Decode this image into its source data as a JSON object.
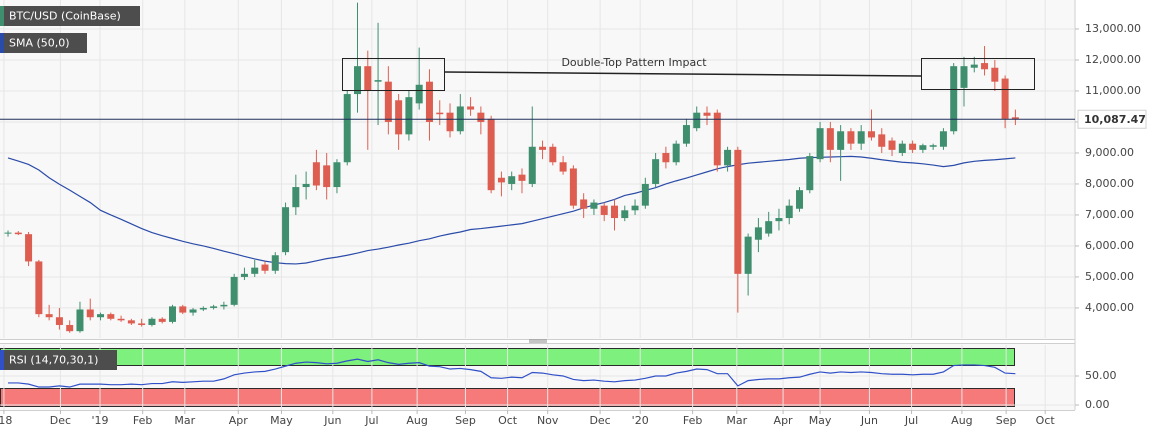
{
  "chart_data": [
    {
      "type": "candlestick",
      "title": "BTC/USD (CoinBase)",
      "up_color": "#3f8f6f",
      "down_color": "#dd5e50",
      "open": [
        6400,
        6430,
        6380,
        5500,
        3800,
        3700,
        3450,
        3250,
        3950,
        3700,
        3800,
        3650,
        3600,
        3500,
        3450,
        3650,
        3550,
        4050,
        3850,
        3950,
        4000,
        4050,
        4100,
        5000,
        5100,
        5400,
        5200,
        5800,
        7250,
        7900,
        8700,
        8600,
        7900,
        8700,
        10900,
        11800,
        11300,
        11300,
        10700,
        9600,
        10600,
        11300,
        10300,
        10300,
        9700,
        10500,
        10300,
        10100,
        8200,
        8000,
        8300,
        8000,
        9200,
        9200,
        8700,
        8500,
        7500,
        7200,
        7300,
        7300,
        6900,
        7150,
        7300,
        8000,
        9000,
        8700,
        9300,
        9800,
        10300,
        10300,
        8600,
        9100,
        5100,
        6200,
        6400,
        6800,
        6900,
        7200,
        7800,
        8800,
        9800,
        9100,
        9700,
        9300,
        9700,
        9600,
        9400,
        9000,
        9300,
        9100,
        9200,
        9200,
        9700,
        11100,
        11750,
        11900,
        11750,
        11400,
        10150
      ],
      "high": [
        6500,
        6480,
        6450,
        5550,
        4100,
        4000,
        3600,
        4200,
        4300,
        3850,
        3850,
        3750,
        3650,
        3650,
        3700,
        3700,
        4100,
        4100,
        4000,
        4050,
        4100,
        4200,
        5100,
        5300,
        5550,
        5500,
        5800,
        7400,
        8300,
        8400,
        9100,
        9000,
        8800,
        11000,
        13850,
        12300,
        13200,
        11800,
        10900,
        11000,
        12400,
        11700,
        10700,
        10600,
        10900,
        10800,
        10500,
        10200,
        8400,
        8400,
        8500,
        10500,
        9400,
        9300,
        8900,
        8600,
        7700,
        7500,
        7400,
        7500,
        7300,
        7500,
        8200,
        9000,
        9200,
        9400,
        10100,
        10500,
        10500,
        10400,
        9200,
        9200,
        6400,
        6900,
        7100,
        7200,
        7500,
        7900,
        9000,
        10000,
        10000,
        9900,
        9800,
        9900,
        10400,
        9800,
        9500,
        9400,
        9400,
        9300,
        9300,
        9800,
        11900,
        12100,
        12100,
        12450,
        12000,
        11500,
        10400
      ],
      "low": [
        6300,
        6350,
        5350,
        3700,
        3600,
        3300,
        3200,
        3200,
        3600,
        3600,
        3600,
        3550,
        3450,
        3400,
        3400,
        3500,
        3500,
        3800,
        3750,
        3900,
        3950,
        3950,
        4050,
        4900,
        5000,
        5100,
        5100,
        5700,
        7000,
        7500,
        7800,
        7500,
        7700,
        8600,
        10300,
        9100,
        9900,
        9600,
        9100,
        9400,
        10400,
        9400,
        9900,
        9500,
        9600,
        10200,
        9600,
        7700,
        7600,
        7800,
        7700,
        7900,
        8800,
        8600,
        8300,
        7200,
        6900,
        7000,
        6800,
        6500,
        6800,
        7000,
        7200,
        7900,
        8500,
        8600,
        9200,
        9700,
        9900,
        8400,
        8400,
        3850,
        4400,
        5800,
        6300,
        6500,
        6700,
        7100,
        7700,
        8700,
        8700,
        8100,
        9100,
        9100,
        9400,
        9000,
        8900,
        8900,
        9000,
        9000,
        9100,
        9100,
        9600,
        10500,
        11600,
        11500,
        11000,
        9800,
        9900
      ],
      "close": [
        6430,
        6380,
        5500,
        3800,
        3700,
        3450,
        3250,
        3950,
        3700,
        3800,
        3650,
        3600,
        3500,
        3450,
        3650,
        3550,
        4050,
        3850,
        3950,
        4000,
        4050,
        4100,
        5000,
        5100,
        5300,
        5200,
        5700,
        7250,
        7900,
        8000,
        7950,
        7900,
        8700,
        10900,
        11800,
        11000,
        11350,
        10000,
        9600,
        10800,
        11200,
        10000,
        10250,
        9700,
        10500,
        10400,
        10000,
        7800,
        8050,
        8250,
        8100,
        9200,
        9100,
        8700,
        8400,
        7300,
        7200,
        7400,
        7000,
        6900,
        7150,
        7300,
        8000,
        8800,
        8700,
        9300,
        9900,
        10300,
        10200,
        8600,
        9100,
        5100,
        6300,
        6600,
        6800,
        6900,
        7300,
        7800,
        8900,
        9800,
        9100,
        9700,
        9300,
        9700,
        9500,
        9200,
        9100,
        9300,
        9100,
        9250,
        9250,
        9700,
        11800,
        11800,
        11850,
        11700,
        11300,
        10100,
        10087.47
      ],
      "sma": {
        "name": "SMA (50,0)",
        "color": "#2a4ba8",
        "values": [
          8840,
          8740,
          8630,
          8450,
          8200,
          7990,
          7800,
          7600,
          7400,
          7150,
          7000,
          6860,
          6710,
          6560,
          6430,
          6330,
          6240,
          6150,
          6070,
          6000,
          5920,
          5830,
          5750,
          5660,
          5580,
          5510,
          5460,
          5430,
          5420,
          5450,
          5520,
          5590,
          5640,
          5700,
          5770,
          5850,
          5900,
          5960,
          6030,
          6090,
          6170,
          6230,
          6320,
          6390,
          6450,
          6530,
          6560,
          6600,
          6640,
          6680,
          6720,
          6800,
          6880,
          6960,
          7040,
          7120,
          7230,
          7320,
          7400,
          7500,
          7630,
          7700,
          7790,
          7880,
          8000,
          8100,
          8190,
          8290,
          8390,
          8490,
          8560,
          8620,
          8670,
          8700,
          8730,
          8760,
          8790,
          8830,
          8850,
          8860,
          8870,
          8880,
          8890,
          8870,
          8830,
          8780,
          8740,
          8700,
          8680,
          8650,
          8610,
          8560,
          8600,
          8680,
          8730,
          8760,
          8780,
          8810,
          8840
        ]
      },
      "last_price": {
        "value": 10087.47,
        "label": "10,087.47"
      },
      "annotation": "Double-Top Pattern Impact",
      "ylim": [
        3030,
        13935
      ],
      "yticks": [
        {
          "value": 4000,
          "label": "4,000.00"
        },
        {
          "value": 5000,
          "label": "5,000.00"
        },
        {
          "value": 6000,
          "label": "6,000.00"
        },
        {
          "value": 7000,
          "label": "7,000.00"
        },
        {
          "value": 8000,
          "label": "8,000.00"
        },
        {
          "value": 9000,
          "label": "9,000.00"
        },
        {
          "value": 10000,
          "label": "10,000.00"
        },
        {
          "value": 11000,
          "label": "11,000.00"
        },
        {
          "value": 12000,
          "label": "12,000.00"
        },
        {
          "value": 13000,
          "label": "13,000.00"
        }
      ],
      "xlim": [
        -0.78,
        103.8
      ],
      "xticks": [
        {
          "value": -0.4,
          "label": "'18"
        },
        {
          "value": 5.1,
          "label": "Dec"
        },
        {
          "value": 8.95,
          "label": "'19"
        },
        {
          "value": 13.1,
          "label": "Feb"
        },
        {
          "value": 17.2,
          "label": "Mar"
        },
        {
          "value": 22.4,
          "label": "Apr"
        },
        {
          "value": 26.6,
          "label": "May"
        },
        {
          "value": 31.6,
          "label": "Jun"
        },
        {
          "value": 35.4,
          "label": "Jul"
        },
        {
          "value": 39.8,
          "label": "Aug"
        },
        {
          "value": 44.5,
          "label": "Sep"
        },
        {
          "value": 48.6,
          "label": "Oct"
        },
        {
          "value": 52.5,
          "label": "Nov"
        },
        {
          "value": 57.6,
          "label": "Dec"
        },
        {
          "value": 61.5,
          "label": "'20"
        },
        {
          "value": 66.6,
          "label": "Feb"
        },
        {
          "value": 70.9,
          "label": "Mar"
        },
        {
          "value": 75.4,
          "label": "Apr"
        },
        {
          "value": 79,
          "label": "May"
        },
        {
          "value": 83.8,
          "label": "Jun"
        },
        {
          "value": 87.9,
          "label": "Jul"
        },
        {
          "value": 92.8,
          "label": "Aug"
        },
        {
          "value": 97.1,
          "label": "Sep"
        },
        {
          "value": 100.9,
          "label": "Oct"
        }
      ],
      "grid": true
    },
    {
      "type": "line",
      "series": [
        {
          "name": "RSI (14,70,30,1)",
          "color": "#3050c8",
          "values": [
            38,
            38,
            36,
            31,
            31,
            33,
            31,
            36,
            36,
            36,
            35,
            35,
            36,
            35,
            37,
            37,
            40,
            39,
            40,
            41,
            41,
            45,
            52,
            55,
            57,
            58,
            62,
            67,
            72,
            74,
            73,
            71,
            72,
            76,
            79,
            75,
            78,
            73,
            70,
            72,
            73,
            67,
            66,
            62,
            63,
            61,
            58,
            47,
            46,
            48,
            47,
            56,
            55,
            52,
            50,
            44,
            42,
            43,
            41,
            40,
            42,
            43,
            46,
            50,
            50,
            55,
            58,
            62,
            61,
            54,
            54,
            33,
            42,
            44,
            45,
            45,
            47,
            48,
            53,
            57,
            55,
            57,
            56,
            57,
            56,
            54,
            53,
            53,
            52,
            53,
            53,
            57,
            68,
            69,
            69,
            68,
            65,
            55,
            54
          ]
        }
      ],
      "ylim": [
        -8.6,
        103.4
      ],
      "yticks": [
        {
          "value": 50,
          "label": "50.00"
        },
        {
          "value": 0,
          "label": "0.00"
        }
      ],
      "grid": true
    }
  ]
}
